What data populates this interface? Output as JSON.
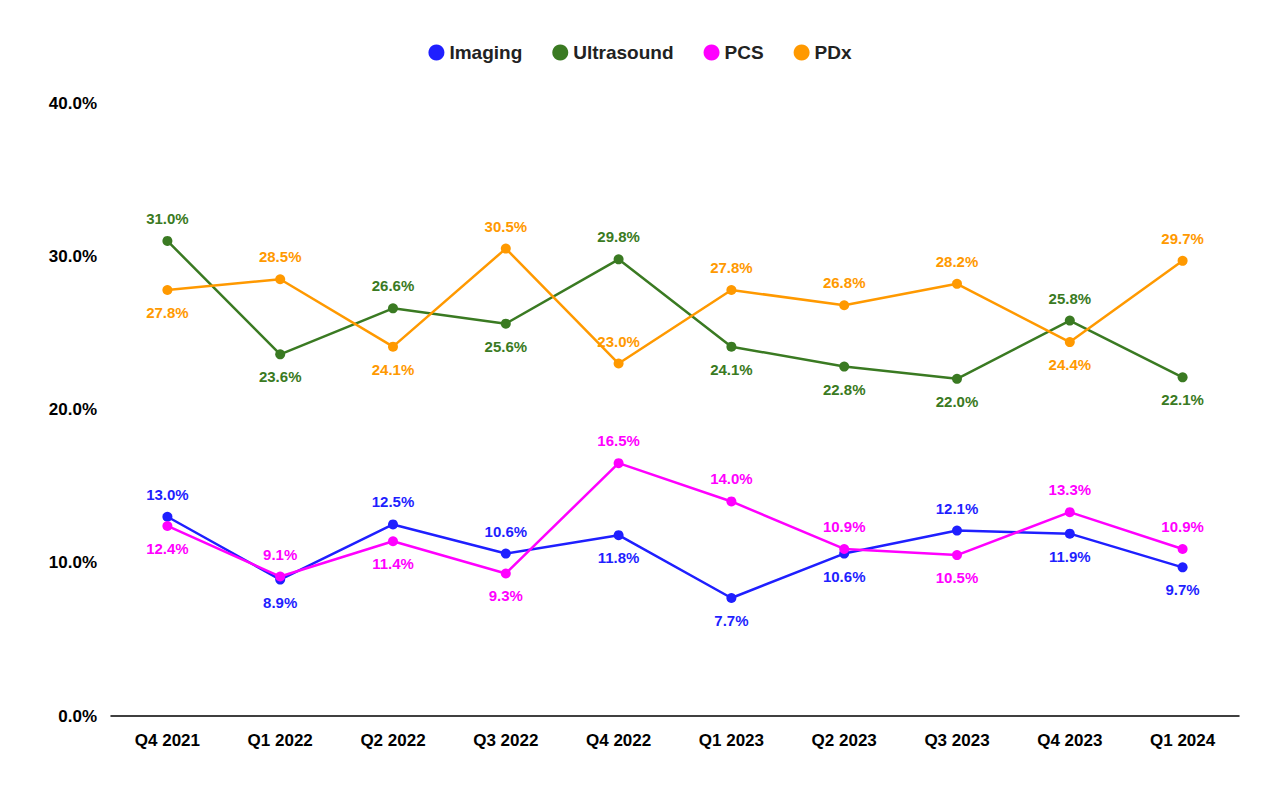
{
  "chart_data": {
    "type": "line",
    "categories": [
      "Q4 2021",
      "Q1 2022",
      "Q2 2022",
      "Q3 2022",
      "Q4 2022",
      "Q1 2023",
      "Q2 2023",
      "Q3 2023",
      "Q4 2023",
      "Q1 2024"
    ],
    "series": [
      {
        "name": "Imaging",
        "color": "#1f1fff",
        "values": [
          13.0,
          8.9,
          12.5,
          10.6,
          11.8,
          7.7,
          10.6,
          12.1,
          11.9,
          9.7
        ],
        "value_labels": [
          "13.0%",
          "8.9%",
          "12.5%",
          "10.6%",
          "11.8%",
          "7.7%",
          "10.6%",
          "12.1%",
          "11.9%",
          "9.7%"
        ]
      },
      {
        "name": "Ultrasound",
        "color": "#3a7a22",
        "values": [
          31.0,
          23.6,
          26.6,
          25.6,
          29.8,
          24.1,
          22.8,
          22.0,
          25.8,
          22.1
        ],
        "value_labels": [
          "31.0%",
          "23.6%",
          "26.6%",
          "25.6%",
          "29.8%",
          "24.1%",
          "22.8%",
          "22.0%",
          "25.8%",
          "22.1%"
        ]
      },
      {
        "name": "PCS",
        "color": "#ff00ff",
        "values": [
          12.4,
          9.1,
          11.4,
          9.3,
          16.5,
          14.0,
          10.9,
          10.5,
          13.3,
          10.9
        ],
        "value_labels": [
          "12.4%",
          "9.1%",
          "11.4%",
          "9.3%",
          "16.5%",
          "14.0%",
          "10.9%",
          "10.5%",
          "13.3%",
          "10.9%"
        ]
      },
      {
        "name": "PDx",
        "color": "#ff9900",
        "values": [
          27.8,
          28.5,
          24.1,
          30.5,
          23.0,
          27.8,
          26.8,
          28.2,
          24.4,
          29.7
        ],
        "value_labels": [
          "27.8%",
          "28.5%",
          "24.1%",
          "30.5%",
          "23.0%",
          "27.8%",
          "26.8%",
          "28.2%",
          "24.4%",
          "29.7%"
        ]
      }
    ],
    "ylim": [
      0,
      40
    ],
    "yticks": [
      {
        "value": 0,
        "label": "0.0%"
      },
      {
        "value": 10,
        "label": "10.0%"
      },
      {
        "value": 20,
        "label": "20.0%"
      },
      {
        "value": 30,
        "label": "30.0%"
      },
      {
        "value": 40,
        "label": "40.0%"
      }
    ],
    "grid": false,
    "legend": "top",
    "data_labels": true,
    "marker": "circle"
  }
}
